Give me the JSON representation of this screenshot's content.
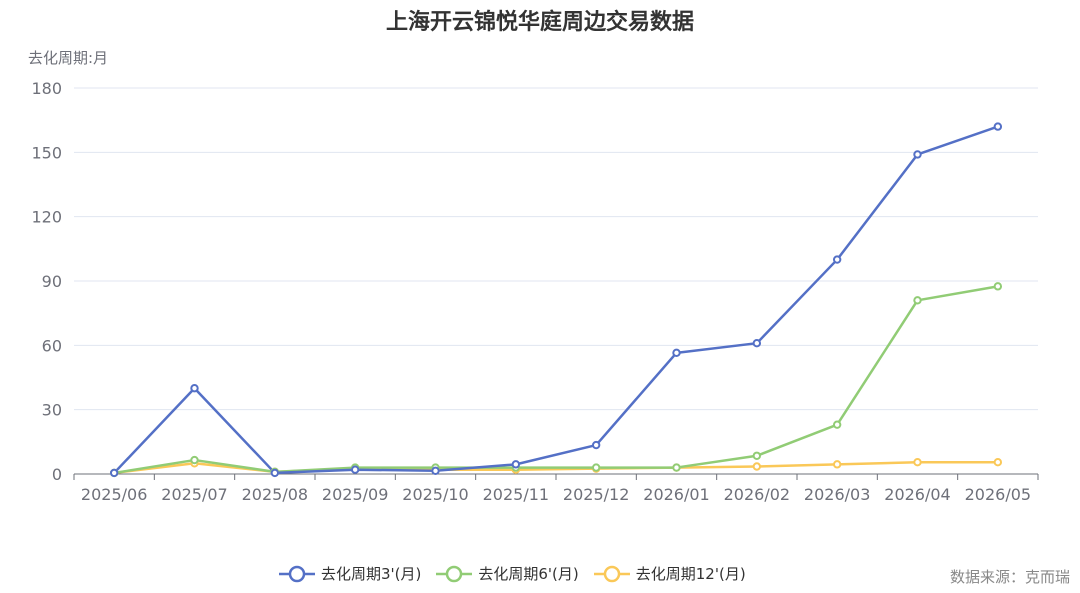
{
  "title": "上海开云锦悦华庭周边交易数据",
  "source_text": "数据来源：克而瑞",
  "chart_data": {
    "type": "line",
    "title": "上海开云锦悦华庭周边交易数据",
    "ylabel": "去化周期:月",
    "xlabel": "",
    "ylim": [
      0,
      180
    ],
    "yticks": [
      0,
      30,
      60,
      90,
      120,
      150,
      180
    ],
    "grid": true,
    "legend_position": "bottom",
    "categories": [
      "2025/06",
      "2025/07",
      "2025/08",
      "2025/09",
      "2025/10",
      "2025/11",
      "2025/12",
      "2026/01",
      "2026/02",
      "2026/03",
      "2026/04",
      "2026/05"
    ],
    "series": [
      {
        "name": "去化周期3'(月)",
        "color": "#5470c6",
        "values": [
          0.5,
          40,
          0.5,
          2,
          1.5,
          4.5,
          13.5,
          56.5,
          61,
          100,
          149,
          162
        ]
      },
      {
        "name": "去化周期6'(月)",
        "color": "#91cc75",
        "values": [
          0.5,
          6.5,
          1,
          3,
          3,
          3,
          3,
          3,
          8.5,
          23,
          81,
          87.5
        ]
      },
      {
        "name": "去化周期12'(月)",
        "color": "#fac858",
        "values": [
          0.5,
          5,
          1,
          2.5,
          2,
          2,
          2.5,
          3,
          3.5,
          4.5,
          5.5,
          5.5
        ]
      }
    ]
  }
}
